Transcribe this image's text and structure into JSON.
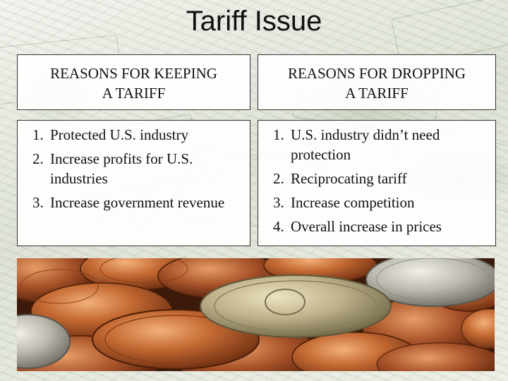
{
  "title": "Tariff Issue",
  "left_header": {
    "line1": "REASONS FOR KEEPING",
    "line2": "A TARIFF"
  },
  "right_header": {
    "line1": "REASONS FOR DROPPING",
    "line2": "A TARIFF"
  },
  "keeping_reasons": [
    "Protected U.S. industry",
    "Increase profits for U.S. industries",
    "Increase government revenue"
  ],
  "dropping_reasons": [
    "U.S. industry didn’t need protection",
    "Reciprocating tariff",
    "Increase competition",
    "Overall increase in prices"
  ],
  "colors": {
    "text": "#111111",
    "border": "#333333",
    "copper": "#b8622e",
    "silver": "#b9b7ae"
  },
  "images": {
    "background": "dollar-bills",
    "bottom_photo": "pile-of-coins"
  }
}
